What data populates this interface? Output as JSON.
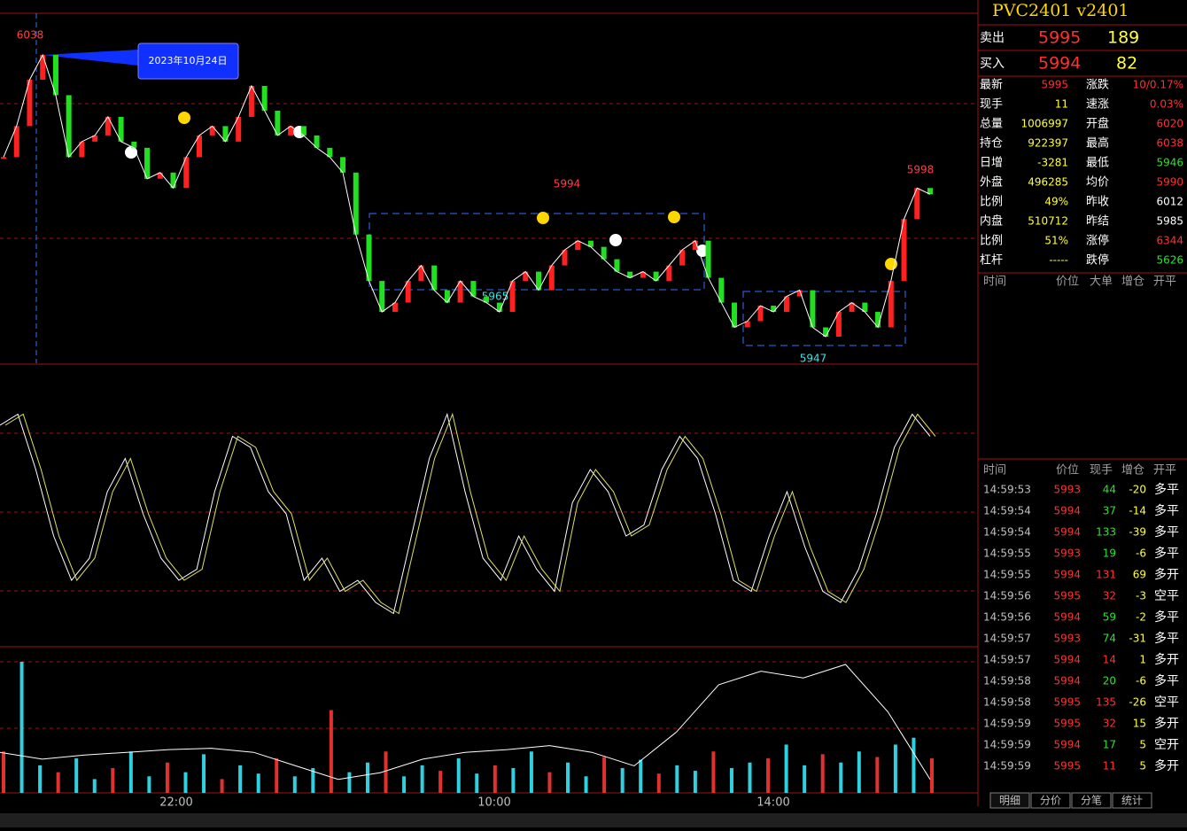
{
  "chart": {
    "annotation": "2023年10月24日",
    "price_labels": [
      "6038",
      "5994",
      "5965",
      "5947",
      "5998"
    ],
    "time_labels": [
      "22:00",
      "10:00",
      "14:00"
    ],
    "prices": [
      6005,
      6015,
      6030,
      6038,
      6025,
      6005,
      6010,
      6012,
      6018,
      6010,
      6008,
      5998,
      6000,
      5995,
      6005,
      6012,
      6015,
      6010,
      6018,
      6028,
      6020,
      6012,
      6015,
      6012,
      6008,
      6005,
      6000,
      5980,
      5965,
      5955,
      5958,
      5965,
      5970,
      5962,
      5958,
      5965,
      5960,
      5958,
      5955,
      5965,
      5968,
      5962,
      5970,
      5975,
      5978,
      5976,
      5972,
      5968,
      5966,
      5968,
      5965,
      5970,
      5975,
      5978,
      5966,
      5958,
      5950,
      5952,
      5957,
      5955,
      5960,
      5962,
      5950,
      5947,
      5955,
      5958,
      5955,
      5950,
      5965,
      5985,
      5995,
      5993
    ],
    "oscillator": [
      90,
      95,
      70,
      40,
      20,
      30,
      60,
      75,
      50,
      30,
      20,
      25,
      60,
      85,
      80,
      60,
      50,
      20,
      30,
      15,
      20,
      10,
      5,
      40,
      75,
      95,
      60,
      30,
      20,
      40,
      25,
      15,
      55,
      70,
      60,
      40,
      45,
      70,
      85,
      75,
      50,
      20,
      15,
      40,
      60,
      35,
      15,
      10,
      25,
      50,
      80,
      95,
      85
    ],
    "volume": [
      30,
      95,
      20,
      15,
      25,
      10,
      18,
      30,
      12,
      22,
      15,
      28,
      10,
      20,
      14,
      25,
      12,
      18,
      60,
      15,
      22,
      30,
      12,
      20,
      16,
      25,
      14,
      20,
      18,
      30,
      15,
      22,
      12,
      26,
      18,
      24,
      14,
      20,
      16,
      30,
      18,
      22,
      25,
      35,
      20,
      28,
      22,
      30,
      26,
      35,
      40,
      25
    ],
    "open_interest": [
      30,
      25,
      28,
      30,
      32,
      33,
      30,
      20,
      10,
      15,
      25,
      30,
      32,
      35,
      30,
      20,
      45,
      80,
      90,
      85,
      95,
      60,
      10
    ]
  },
  "quote": {
    "symbol": "PVC2401  v2401",
    "sell": {
      "label": "卖出",
      "price": "5995",
      "qty": "189"
    },
    "buy": {
      "label": "买入",
      "price": "5994",
      "qty": "82"
    },
    "stats": [
      {
        "l": "最新",
        "lv": "5995",
        "lc": "#ff3030",
        "r": "涨跌",
        "rv": "10/0.17%",
        "rc": "#ff3030"
      },
      {
        "l": "现手",
        "lv": "11",
        "lc": "#ffff40",
        "r": "速涨",
        "rv": "0.03%",
        "rc": "#ff3030"
      },
      {
        "l": "总量",
        "lv": "1006997",
        "lc": "#ffff40",
        "r": "开盘",
        "rv": "6020",
        "rc": "#ff3030"
      },
      {
        "l": "持仓",
        "lv": "922397",
        "lc": "#ffff40",
        "r": "最高",
        "rv": "6038",
        "rc": "#ff3030"
      },
      {
        "l": "日增",
        "lv": "-3281",
        "lc": "#ffff40",
        "r": "最低",
        "rv": "5946",
        "rc": "#30e030"
      },
      {
        "l": "外盘",
        "lv": "496285",
        "lc": "#ffff40",
        "r": "均价",
        "rv": "5990",
        "rc": "#ff3030"
      },
      {
        "l": "比例",
        "lv": "49%",
        "lc": "#ffff40",
        "r": "昨收",
        "rv": "6012",
        "rc": "#ffffff"
      },
      {
        "l": "内盘",
        "lv": "510712",
        "lc": "#ffff40",
        "r": "昨结",
        "rv": "5985",
        "rc": "#ffffff"
      },
      {
        "l": "比例",
        "lv": "51%",
        "lc": "#ffff40",
        "r": "涨停",
        "rv": "6344",
        "rc": "#ff3030"
      },
      {
        "l": "杠杆",
        "lv": "-----",
        "lc": "#ffff40",
        "r": "跌停",
        "rv": "5626",
        "rc": "#30e030"
      }
    ],
    "big_header": [
      "时间",
      "价位",
      "大单",
      "增仓",
      "开平"
    ],
    "tick_header": [
      "时间",
      "价位",
      "现手",
      "增仓",
      "开平"
    ],
    "ticks": [
      {
        "t": "14:59:53",
        "p": "5993",
        "q": "44",
        "oi": "-20",
        "k": "多平",
        "c": "#30e030"
      },
      {
        "t": "14:59:54",
        "p": "5994",
        "q": "37",
        "oi": "-14",
        "k": "多平",
        "c": "#30e030"
      },
      {
        "t": "14:59:54",
        "p": "5994",
        "q": "133",
        "oi": "-39",
        "k": "多平",
        "c": "#30e030"
      },
      {
        "t": "14:59:55",
        "p": "5993",
        "q": "19",
        "oi": "-6",
        "k": "多平",
        "c": "#30e030"
      },
      {
        "t": "14:59:55",
        "p": "5994",
        "q": "131",
        "oi": "69",
        "k": "多开",
        "c": "#ff3030"
      },
      {
        "t": "14:59:56",
        "p": "5995",
        "q": "32",
        "oi": "-3",
        "k": "空平",
        "c": "#ff3030"
      },
      {
        "t": "14:59:56",
        "p": "5994",
        "q": "59",
        "oi": "-2",
        "k": "多平",
        "c": "#30e030"
      },
      {
        "t": "14:59:57",
        "p": "5993",
        "q": "74",
        "oi": "-31",
        "k": "多平",
        "c": "#30e030"
      },
      {
        "t": "14:59:57",
        "p": "5994",
        "q": "14",
        "oi": "1",
        "k": "多开",
        "c": "#ff3030"
      },
      {
        "t": "14:59:58",
        "p": "5994",
        "q": "20",
        "oi": "-6",
        "k": "多平",
        "c": "#30e030"
      },
      {
        "t": "14:59:58",
        "p": "5995",
        "q": "135",
        "oi": "-26",
        "k": "空平",
        "c": "#ff3030"
      },
      {
        "t": "14:59:59",
        "p": "5995",
        "q": "32",
        "oi": "15",
        "k": "多开",
        "c": "#ff3030"
      },
      {
        "t": "14:59:59",
        "p": "5994",
        "q": "17",
        "oi": "5",
        "k": "空开",
        "c": "#30e030"
      },
      {
        "t": "14:59:59",
        "p": "5995",
        "q": "11",
        "oi": "5",
        "k": "多开",
        "c": "#ff3030"
      }
    ],
    "tabs": [
      "明细",
      "分价",
      "分笔",
      "统计"
    ]
  }
}
